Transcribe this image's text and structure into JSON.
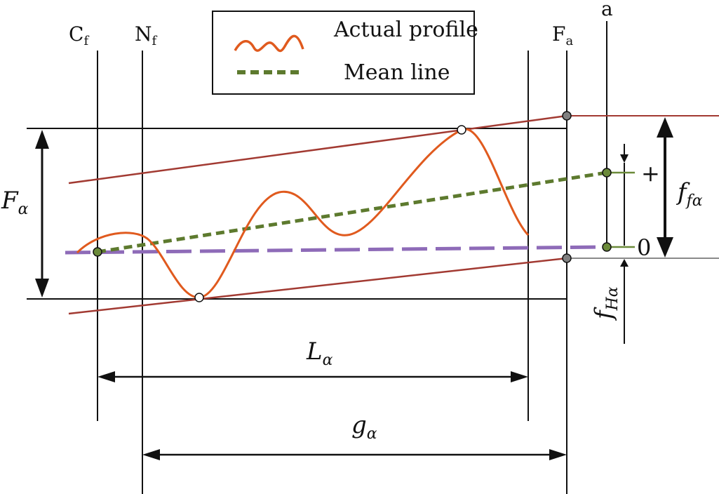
{
  "legend": {
    "actual": "Actual profile",
    "mean": "Mean line"
  },
  "labels": {
    "cf_main": "C",
    "cf_sub": "f",
    "nf_main": "N",
    "nf_sub": "f",
    "fa_main": "F",
    "fa_sub": "a",
    "a": "a",
    "F_alpha_main": "F",
    "F_alpha_sub": "α",
    "ffa_main": "f",
    "ffa_sub": "fα",
    "fha_main": "f",
    "fha_sub": "Hα",
    "L_alpha_main": "L",
    "L_alpha_sub": "α",
    "g_alpha_main": "g",
    "g_alpha_sub": "α",
    "plus": "+",
    "zero": "0"
  },
  "colors": {
    "profile": "#e05a1e",
    "tolerance": "#a23a32",
    "mean": "#5d7a2e",
    "design": "#8e6bb8",
    "line": "#111111",
    "gray_line": "#8a8a8a",
    "marker_fill": "#808080",
    "green_marker": "#6b8a3a"
  }
}
